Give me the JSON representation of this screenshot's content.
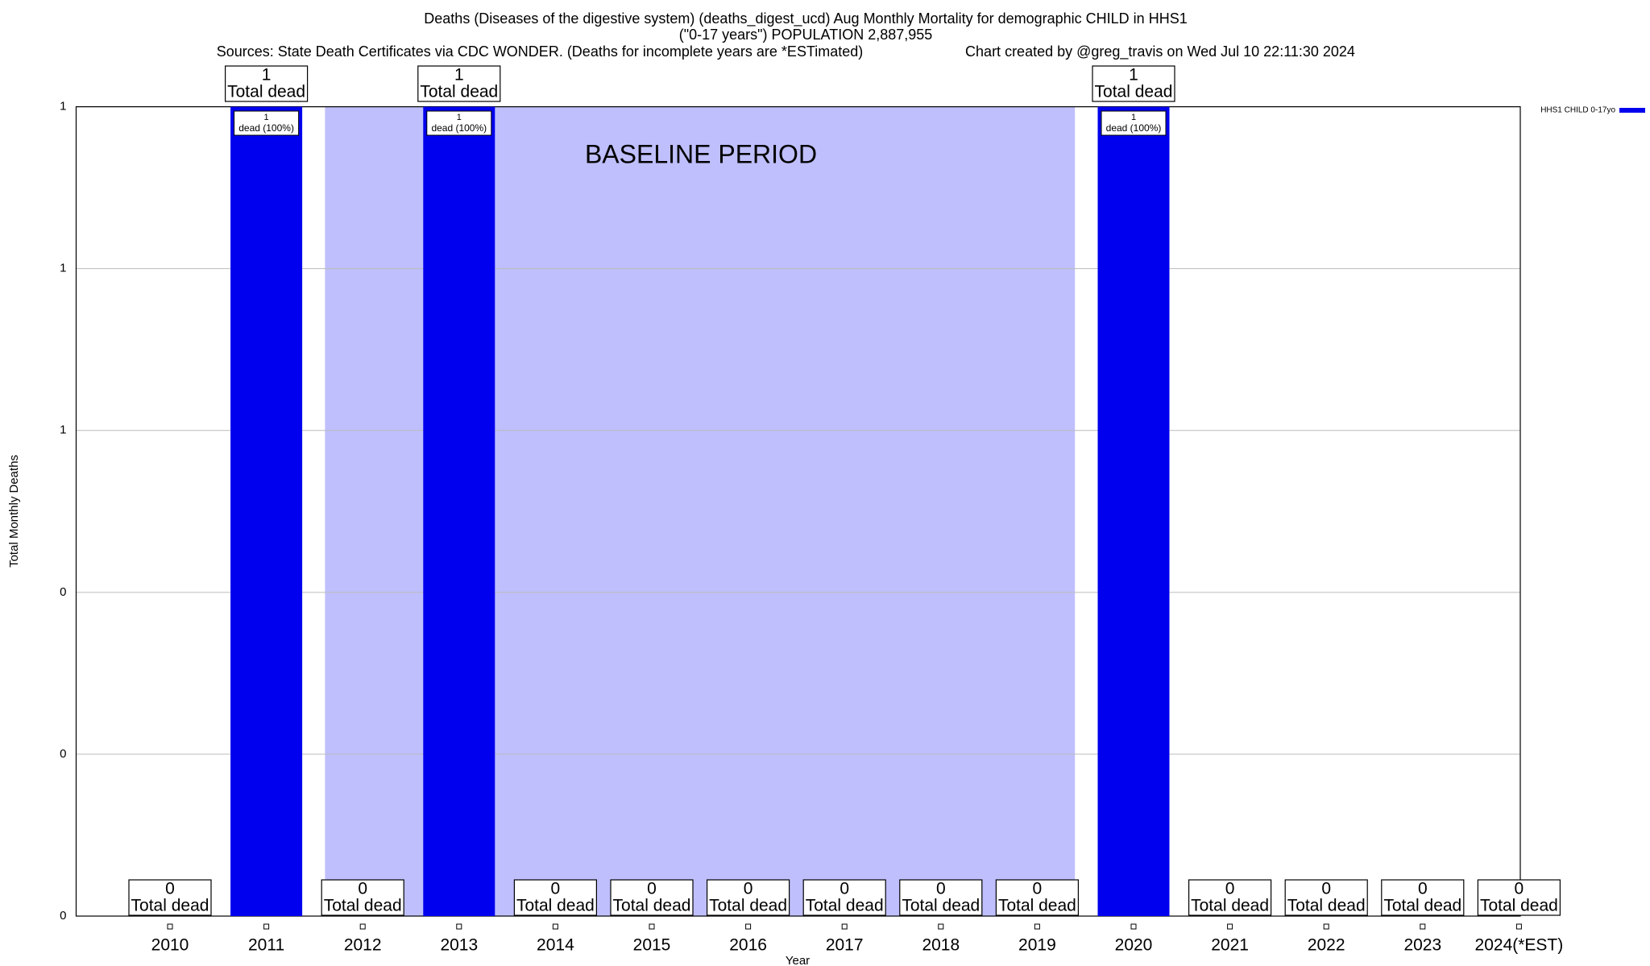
{
  "chart_data": {
    "type": "bar",
    "title": "Deaths (Diseases of the digestive system) (deaths_digest_ucd) Aug Monthly Mortality for demographic CHILD in HHS1",
    "subtitle": "(\"0-17 years\") POPULATION 2,887,955",
    "sources": "Sources: State Death Certificates via CDC WONDER. (Deaths for incomplete years are *ESTimated)",
    "credit": "Chart created by @greg_travis on Wed Jul 10 22:11:30 2024",
    "x_label": "Year",
    "y_label": "Total Monthly Deaths",
    "categories": [
      "2010",
      "2011",
      "2012",
      "2013",
      "2014",
      "2015",
      "2016",
      "2017",
      "2018",
      "2019",
      "2020",
      "2021",
      "2022",
      "2023",
      "2024(*EST)"
    ],
    "series": [
      {
        "name": "HHS1 CHILD 0-17yo",
        "color": "#0000ee",
        "values": [
          0,
          1,
          0,
          1,
          0,
          0,
          0,
          0,
          0,
          0,
          1,
          0,
          0,
          0,
          0
        ],
        "share_labels": [
          null,
          "dead (100%)",
          null,
          "dead (100%)",
          null,
          null,
          null,
          null,
          null,
          null,
          "dead (100%)",
          null,
          null,
          null,
          null
        ]
      }
    ],
    "total_label": "Total dead",
    "baseline": {
      "label": "BASELINE PERIOD",
      "start": "2012",
      "end": "2019",
      "color": "#bfbffd"
    },
    "ylim": [
      0,
      1
    ],
    "yticks": [
      0,
      {
        "value": 0.2,
        "label": "0"
      },
      {
        "value": 0.4,
        "label": "0"
      },
      {
        "value": 0.6,
        "label": "1"
      },
      {
        "value": 0.8,
        "label": "1"
      },
      1
    ],
    "grid": true,
    "legend": "top-right"
  }
}
